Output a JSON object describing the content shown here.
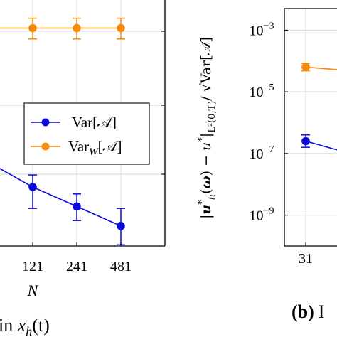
{
  "colors": {
    "blue": "#0a0adc",
    "orange": "#f58a0b"
  },
  "chart_data": [
    {
      "panel": "a",
      "type": "line",
      "log_y": true,
      "x": [
        121,
        241,
        481
      ],
      "xticklabels": [
        "121",
        "241",
        "481"
      ],
      "xlabel": "N",
      "caption_fragment": "in x_h(t)",
      "caption_parts": {
        "prefix": "in ",
        "var": "x",
        "sub": "h",
        "suffix": "(t)"
      },
      "legend": {
        "position": "center-right",
        "entries": [
          "Var[ᵉ]",
          "Var_W[ᵉ]"
        ]
      },
      "series": [
        {
          "name": "Var[𝒜]",
          "name_main": "Var[𝒜]",
          "color_key": "blue",
          "values": [
            0.0031,
            0.0017,
            0.00093
          ],
          "err_low": [
            0.0016,
            0.0011,
            0.00052
          ],
          "err_high": [
            0.0045,
            0.0025,
            0.0016
          ]
        },
        {
          "name": "Var_W[𝒜]",
          "name_main": "Var",
          "name_sub": "W",
          "name_tail": "[𝒜]",
          "color_key": "orange",
          "values": [
            0.42,
            0.42,
            0.42
          ],
          "err_low": [
            0.3,
            0.3,
            0.3
          ],
          "err_high": [
            0.57,
            0.57,
            0.57
          ]
        }
      ],
      "grid": true
    },
    {
      "panel": "b",
      "type": "line",
      "log_y": true,
      "ylim_exp": [
        -10,
        -2.3
      ],
      "yticks_exp": [
        -9,
        -7,
        -5,
        -3
      ],
      "ytick_base": "10",
      "ytick_exps": [
        "−9",
        "−7",
        "−5",
        "−3"
      ],
      "ylabel": "|u*_h(ω) − u*|_{L²(0,T)} / √Var[𝒜]",
      "xticklabels": [
        "31"
      ],
      "caption_fragment": "(b) I",
      "series": [
        {
          "color_key": "orange",
          "x": [
            31
          ],
          "y_exp": [
            -4.2
          ],
          "err_exp": [
            0.12
          ]
        },
        {
          "color_key": "blue",
          "x": [
            31
          ],
          "y_exp": [
            -6.6
          ],
          "err_exp": [
            0.2
          ]
        }
      ],
      "grid": true
    }
  ],
  "text": {
    "caption_b_bold": "(b)",
    "caption_b_rest": "I"
  }
}
